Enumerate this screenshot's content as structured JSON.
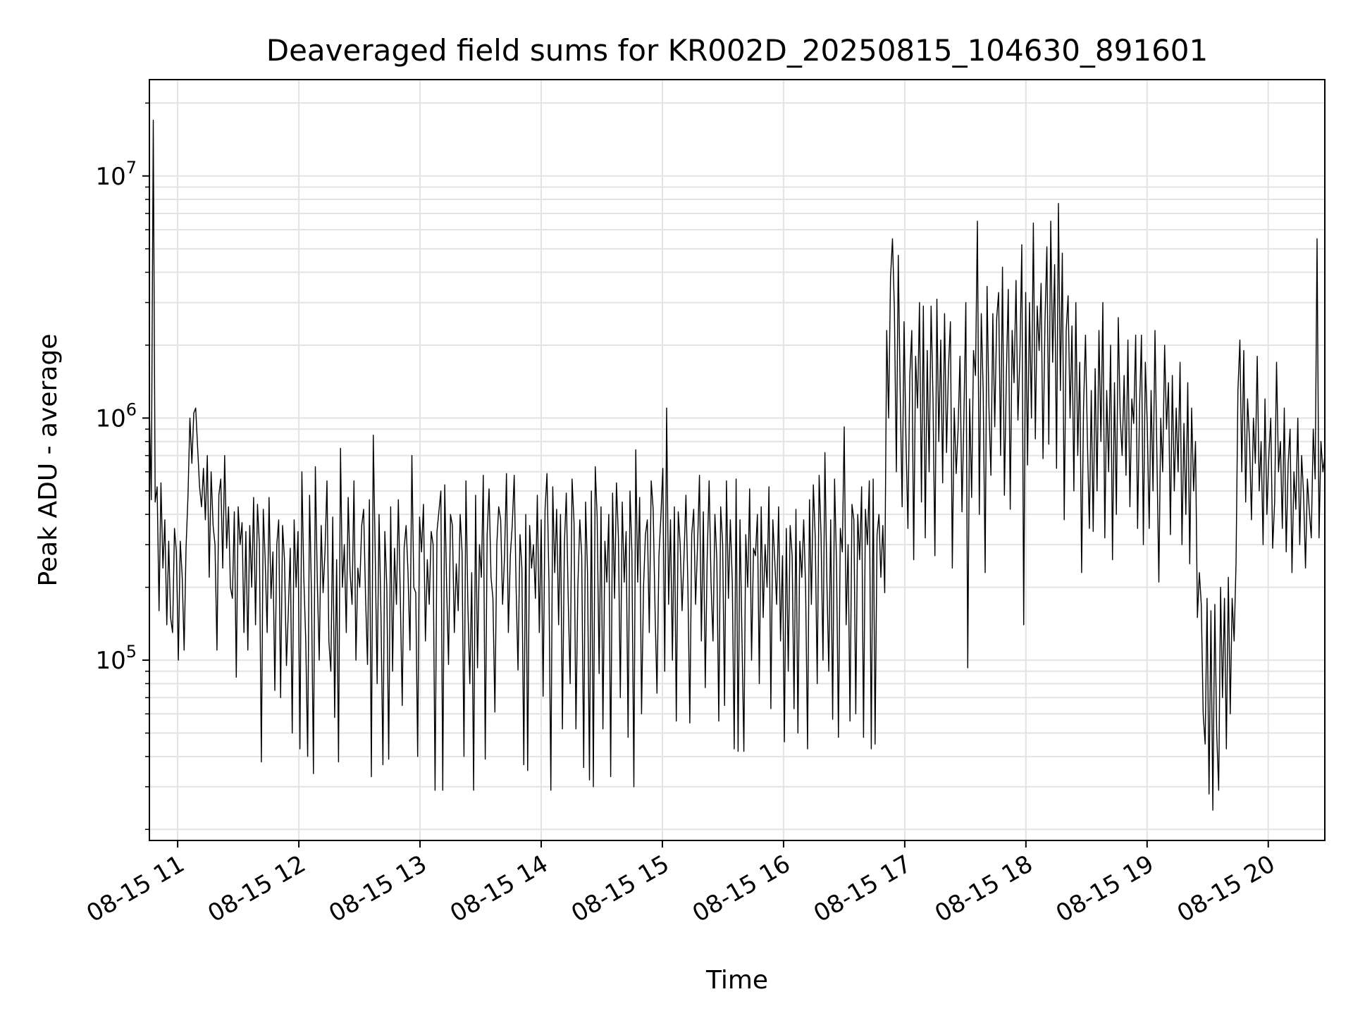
{
  "chart_data": {
    "type": "line",
    "title": "Deaveraged field sums for KR002D_20250815_104630_891601",
    "xlabel": "Time",
    "ylabel": "Peak ADU - average",
    "yscale": "log",
    "grid": true,
    "line_color": "#000000",
    "xlim": [
      "2025-08-15 10:46",
      "2025-08-15 20:28"
    ],
    "ylim": [
      18000,
      25000000
    ],
    "x_ticks": [
      "08-15 11",
      "08-15 12",
      "08-15 13",
      "08-15 14",
      "08-15 15",
      "08-15 16",
      "08-15 17",
      "08-15 18",
      "08-15 19",
      "08-15 20"
    ],
    "y_ticks": [
      {
        "base": "10",
        "exp": "5",
        "value": 100000
      },
      {
        "base": "10",
        "exp": "6",
        "value": 1000000
      },
      {
        "base": "10",
        "exp": "7",
        "value": 10000000
      }
    ],
    "series": [
      {
        "x_start": "2025-08-15 10:46",
        "x_end": "2025-08-15 20:28",
        "sampling_note_shown": false,
        "values": [
          1100000,
          460000,
          17000000,
          450000,
          520000,
          160000,
          540000,
          240000,
          380000,
          140000,
          310000,
          150000,
          130000,
          350000,
          280000,
          100000,
          310000,
          220000,
          110000,
          290000,
          480000,
          1000000,
          650000,
          1050000,
          1100000,
          750000,
          520000,
          430000,
          620000,
          380000,
          700000,
          220000,
          600000,
          360000,
          300000,
          110000,
          480000,
          560000,
          240000,
          700000,
          290000,
          430000,
          200000,
          180000,
          410000,
          85000,
          430000,
          300000,
          370000,
          130000,
          340000,
          110000,
          360000,
          200000,
          470000,
          140000,
          440000,
          300000,
          38000,
          420000,
          260000,
          130000,
          470000,
          180000,
          280000,
          75000,
          300000,
          380000,
          70000,
          360000,
          260000,
          95000,
          160000,
          290000,
          50000,
          380000,
          200000,
          340000,
          43000,
          600000,
          220000,
          120000,
          40000,
          480000,
          180000,
          34000,
          630000,
          210000,
          100000,
          360000,
          190000,
          280000,
          550000,
          120000,
          90000,
          390000,
          58000,
          260000,
          38000,
          750000,
          200000,
          300000,
          130000,
          470000,
          230000,
          170000,
          550000,
          100000,
          240000,
          200000,
          360000,
          420000,
          180000,
          96000,
          460000,
          33000,
          850000,
          270000,
          80000,
          400000,
          150000,
          37000,
          340000,
          200000,
          39000,
          430000,
          90000,
          290000,
          170000,
          460000,
          180000,
          65000,
          290000,
          360000,
          230000,
          110000,
          700000,
          200000,
          190000,
          40000,
          390000,
          280000,
          440000,
          120000,
          260000,
          170000,
          340000,
          300000,
          29000,
          340000,
          410000,
          500000,
          29000,
          530000,
          200000,
          96000,
          400000,
          360000,
          130000,
          250000,
          160000,
          400000,
          280000,
          40000,
          550000,
          170000,
          80000,
          230000,
          29000,
          480000,
          93000,
          300000,
          220000,
          580000,
          39000,
          330000,
          510000,
          220000,
          180000,
          61000,
          300000,
          430000,
          380000,
          170000,
          270000,
          590000,
          130000,
          270000,
          360000,
          580000,
          200000,
          91000,
          330000,
          240000,
          37000,
          400000,
          35000,
          360000,
          240000,
          300000,
          180000,
          480000,
          130000,
          380000,
          71000,
          420000,
          590000,
          210000,
          29000,
          520000,
          230000,
          420000,
          140000,
          400000,
          52000,
          300000,
          490000,
          180000,
          80000,
          560000,
          370000,
          52000,
          200000,
          380000,
          270000,
          36000,
          450000,
          230000,
          32000,
          500000,
          30000,
          630000,
          390000,
          88000,
          430000,
          52000,
          310000,
          210000,
          400000,
          33000,
          490000,
          180000,
          540000,
          320000,
          70000,
          450000,
          210000,
          340000,
          48000,
          500000,
          280000,
          30000,
          740000,
          210000,
          470000,
          60000,
          200000,
          330000,
          380000,
          130000,
          550000,
          420000,
          160000,
          73000,
          270000,
          390000,
          620000,
          90000,
          1100000,
          170000,
          380000,
          100000,
          430000,
          56000,
          410000,
          300000,
          160000,
          270000,
          480000,
          200000,
          55000,
          330000,
          420000,
          170000,
          300000,
          580000,
          120000,
          410000,
          77000,
          260000,
          550000,
          210000,
          120000,
          400000,
          260000,
          56000,
          430000,
          300000,
          65000,
          550000,
          180000,
          380000,
          210000,
          43000,
          560000,
          42000,
          380000,
          130000,
          42000,
          330000,
          200000,
          510000,
          100000,
          290000,
          270000,
          400000,
          80000,
          430000,
          150000,
          300000,
          200000,
          520000,
          63000,
          380000,
          260000,
          170000,
          430000,
          120000,
          270000,
          46000,
          350000,
          90000,
          360000,
          270000,
          63000,
          420000,
          50000,
          310000,
          220000,
          380000,
          200000,
          43000,
          460000,
          170000,
          530000,
          320000,
          80000,
          580000,
          330000,
          100000,
          720000,
          210000,
          90000,
          380000,
          57000,
          560000,
          250000,
          48000,
          350000,
          280000,
          920000,
          140000,
          300000,
          56000,
          440000,
          380000,
          60000,
          400000,
          260000,
          520000,
          48000,
          420000,
          300000,
          550000,
          43000,
          560000,
          45000,
          330000,
          400000,
          220000,
          360000,
          190000,
          2300000,
          1000000,
          3800000,
          5500000,
          2800000,
          600000,
          4700000,
          1300000,
          430000,
          2500000,
          800000,
          350000,
          1500000,
          2300000,
          260000,
          1800000,
          1100000,
          3000000,
          450000,
          2900000,
          320000,
          1900000,
          600000,
          2900000,
          1200000,
          270000,
          3100000,
          800000,
          2100000,
          540000,
          2700000,
          720000,
          1600000,
          2500000,
          240000,
          1100000,
          590000,
          900000,
          1800000,
          410000,
          1000000,
          3000000,
          93000,
          1200000,
          470000,
          1900000,
          1500000,
          6500000,
          400000,
          2700000,
          1300000,
          230000,
          3500000,
          1100000,
          580000,
          2700000,
          920000,
          2600000,
          3300000,
          700000,
          4200000,
          480000,
          1500000,
          3400000,
          420000,
          2300000,
          1400000,
          3700000,
          980000,
          1800000,
          5200000,
          140000,
          3300000,
          640000,
          3000000,
          1000000,
          6400000,
          820000,
          2900000,
          1900000,
          3600000,
          680000,
          2500000,
          5100000,
          780000,
          6500000,
          1700000,
          4300000,
          620000,
          7700000,
          1300000,
          4800000,
          380000,
          2300000,
          3200000,
          1000000,
          2400000,
          500000,
          3000000,
          700000,
          1700000,
          230000,
          1100000,
          2200000,
          800000,
          350000,
          1300000,
          340000,
          1600000,
          500000,
          2300000,
          800000,
          3000000,
          320000,
          1300000,
          600000,
          2000000,
          260000,
          1400000,
          400000,
          2600000,
          1000000,
          700000,
          1500000,
          580000,
          2100000,
          430000,
          1200000,
          950000,
          2200000,
          350000,
          1100000,
          2200000,
          300000,
          1700000,
          950000,
          350000,
          1300000,
          500000,
          2300000,
          700000,
          210000,
          1000000,
          600000,
          2000000,
          900000,
          1400000,
          330000,
          1500000,
          500000,
          1100000,
          600000,
          1700000,
          300000,
          950000,
          400000,
          1400000,
          250000,
          1100000,
          500000,
          800000,
          150000,
          230000,
          170000,
          60000,
          45000,
          180000,
          28000,
          160000,
          24000,
          170000,
          50000,
          29000,
          200000,
          70000,
          180000,
          43000,
          220000,
          60000,
          180000,
          120000,
          250000,
          1300000,
          2100000,
          600000,
          1900000,
          450000,
          1200000,
          800000,
          380000,
          1000000,
          650000,
          1800000,
          500000,
          800000,
          300000,
          1200000,
          400000,
          700000,
          1000000,
          290000,
          450000,
          1700000,
          600000,
          800000,
          350000,
          1100000,
          280000,
          650000,
          900000,
          230000,
          600000,
          420000,
          1000000,
          300000,
          700000,
          480000,
          240000,
          560000,
          410000,
          320000,
          900000,
          560000,
          5500000,
          320000,
          800000,
          600000,
          700000
        ]
      }
    ]
  }
}
